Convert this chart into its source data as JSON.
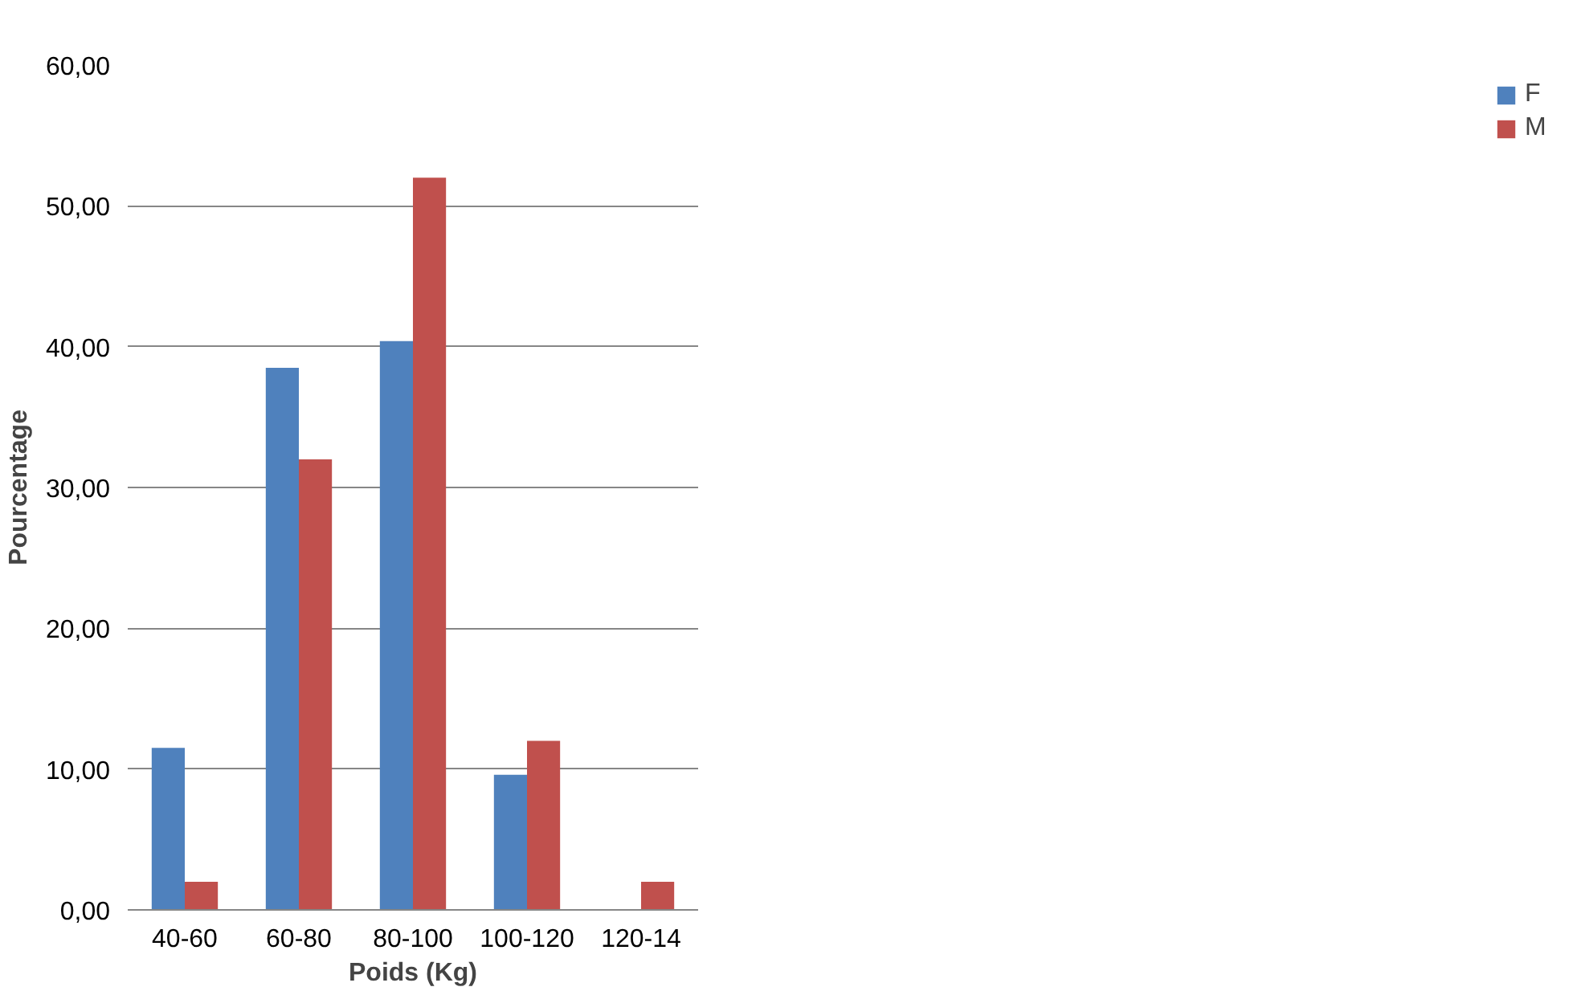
{
  "chart_data": {
    "type": "bar",
    "xlabel": "Poids (Kg)",
    "ylabel": "Pourcentage",
    "categories": [
      "40-60",
      "60-80",
      "80-100",
      "100-120",
      "120-14"
    ],
    "series": [
      {
        "name": "F",
        "color": "#4f81bd",
        "values": [
          11.5,
          38.5,
          40.4,
          9.6,
          0
        ]
      },
      {
        "name": "M",
        "color": "#c0504d",
        "values": [
          2,
          32,
          52,
          12,
          2
        ]
      }
    ],
    "ylim": [
      0,
      60
    ],
    "yticks": [
      {
        "value": 0,
        "label": "0,00"
      },
      {
        "value": 10,
        "label": "10,00"
      },
      {
        "value": 20,
        "label": "20,00"
      },
      {
        "value": 30,
        "label": "30,00"
      },
      {
        "value": 40,
        "label": "40,00"
      },
      {
        "value": 50,
        "label": "50,00"
      },
      {
        "value": 60,
        "label": "60,00"
      }
    ],
    "grid": "y",
    "legend": "right"
  }
}
